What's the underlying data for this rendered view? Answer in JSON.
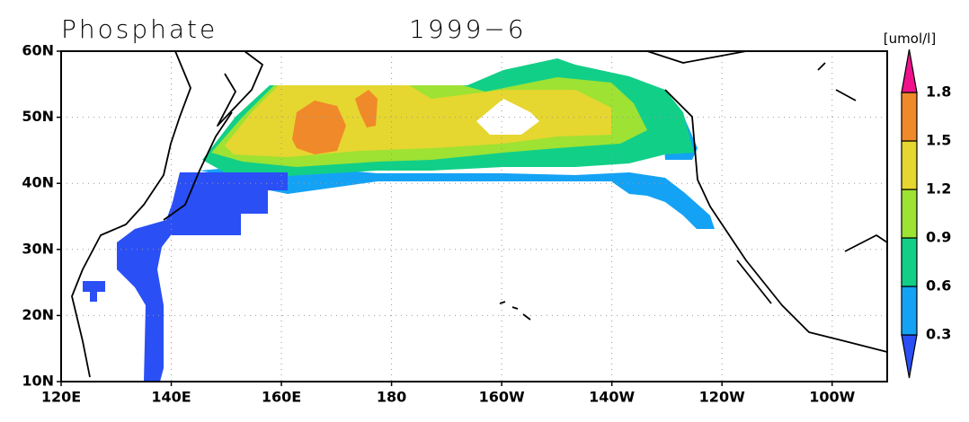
{
  "map": {
    "title": "Phosphate",
    "date": "1999−6",
    "unit": "[umol/l]",
    "lat_labels": [
      {
        "value": 60,
        "label": "60N"
      },
      {
        "value": 50,
        "label": "50N"
      },
      {
        "value": 40,
        "label": "40N"
      },
      {
        "value": 30,
        "label": "30N"
      },
      {
        "value": 20,
        "label": "20N"
      },
      {
        "value": 10,
        "label": "10N"
      }
    ],
    "lon_labels": [
      {
        "value": 120,
        "label": "120E"
      },
      {
        "value": 140,
        "label": "140E"
      },
      {
        "value": 160,
        "label": "160E"
      },
      {
        "value": 180,
        "label": "180"
      },
      {
        "value": 200,
        "label": "160W"
      },
      {
        "value": 220,
        "label": "140W"
      },
      {
        "value": 240,
        "label": "120W"
      },
      {
        "value": 260,
        "label": "100W"
      }
    ],
    "colorbar": {
      "levels": [
        0.3,
        0.6,
        0.9,
        1.2,
        1.5,
        1.8
      ],
      "colors": [
        "#2a4ff5",
        "#14a2f5",
        "#12cf88",
        "#9ee233",
        "#e6d630",
        "#f0892a",
        "#f0128c"
      ]
    }
  }
}
